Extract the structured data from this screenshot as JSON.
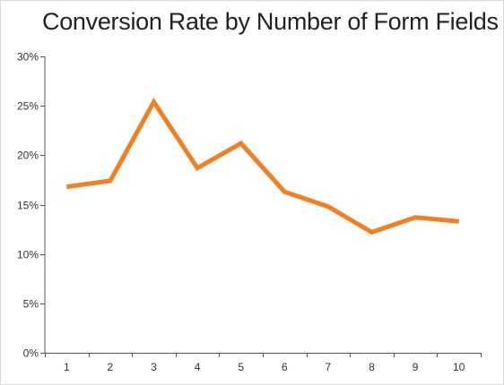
{
  "chart_data": {
    "type": "line",
    "title": "Conversion Rate by Number of Form Fields",
    "xlabel": "",
    "ylabel": "",
    "categories": [
      "1",
      "2",
      "3",
      "4",
      "5",
      "6",
      "7",
      "8",
      "9",
      "10"
    ],
    "series": [
      {
        "values": [
          16.8,
          17.4,
          25.4,
          18.7,
          21.2,
          16.3,
          14.8,
          12.2,
          13.7,
          13.3
        ],
        "color": "#f47f20"
      }
    ],
    "ylim": [
      0,
      30
    ],
    "yticks": [
      0,
      5,
      10,
      15,
      20,
      25,
      30
    ],
    "ytick_labels": [
      "0%",
      "5%",
      "10%",
      "15%",
      "20%",
      "25%",
      "30%"
    ],
    "grid": false,
    "legend": "none"
  }
}
